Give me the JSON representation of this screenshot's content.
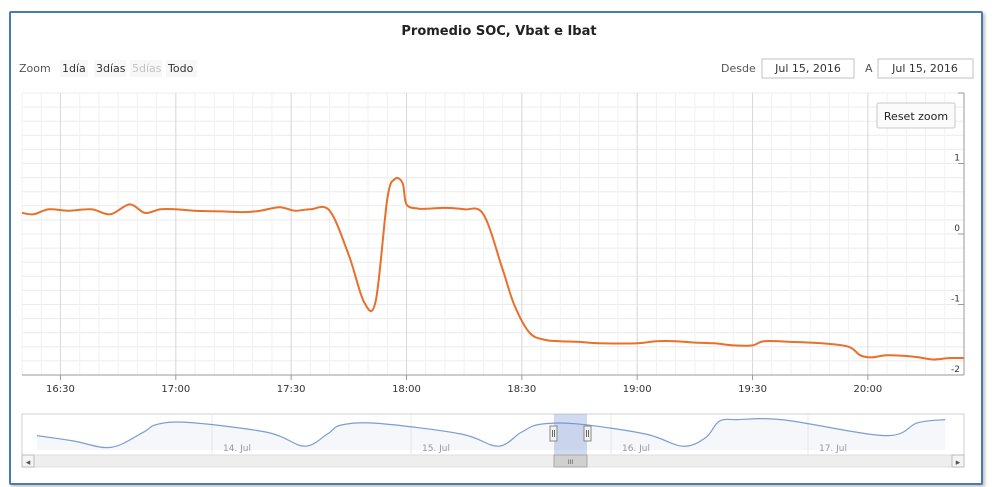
{
  "chart_data": {
    "type": "line",
    "title": "Promedio SOC, Vbat e Ibat",
    "xlabel": "",
    "ylabel": "",
    "x_ticks": [
      "16:30",
      "17:00",
      "17:30",
      "18:00",
      "18:30",
      "19:00",
      "19:30",
      "20:00"
    ],
    "y_ticks": [
      "1",
      "0",
      "-1",
      "-2"
    ],
    "x_range": [
      "16:20",
      "20:25"
    ],
    "ylim": [
      -2,
      2
    ],
    "grid": true,
    "series": [
      {
        "color": "#e8702a",
        "x": [
          "16:20",
          "16:23",
          "16:27",
          "16:32",
          "16:38",
          "16:43",
          "16:48",
          "16:52",
          "16:56",
          "17:00",
          "17:05",
          "17:12",
          "17:18",
          "17:22",
          "17:27",
          "17:31",
          "17:35",
          "17:40",
          "17:45",
          "17:49",
          "17:52",
          "17:55",
          "17:57",
          "17:59",
          "18:00",
          "18:03",
          "18:06",
          "18:10",
          "18:15",
          "18:20",
          "18:25",
          "18:28",
          "18:32",
          "18:36",
          "18:40",
          "18:45",
          "18:50",
          "19:00",
          "19:05",
          "19:10",
          "19:15",
          "19:20",
          "19:25",
          "19:30",
          "19:33",
          "19:40",
          "19:48",
          "19:55",
          "19:58",
          "20:01",
          "20:05",
          "20:12",
          "20:17",
          "20:21",
          "20:25"
        ],
        "y": [
          0.3,
          0.28,
          0.35,
          0.33,
          0.35,
          0.28,
          0.42,
          0.3,
          0.35,
          0.35,
          0.33,
          0.32,
          0.31,
          0.33,
          0.38,
          0.33,
          0.35,
          0.33,
          -0.3,
          -0.97,
          -0.95,
          0.5,
          0.78,
          0.72,
          0.42,
          0.36,
          0.36,
          0.37,
          0.35,
          0.28,
          -0.5,
          -1.0,
          -1.4,
          -1.5,
          -1.52,
          -1.53,
          -1.55,
          -1.55,
          -1.52,
          -1.52,
          -1.54,
          -1.55,
          -1.58,
          -1.58,
          -1.52,
          -1.53,
          -1.55,
          -1.6,
          -1.72,
          -1.75,
          -1.72,
          -1.74,
          -1.78,
          -1.76,
          -1.76
        ]
      }
    ],
    "navigator": {
      "x_labels": [
        "14. Jul",
        "15. Jul",
        "16. Jul",
        "17. Jul"
      ],
      "color": "#7b9ed0"
    }
  },
  "controls": {
    "zoom_label": "Zoom",
    "zoom_buttons": [
      "1día",
      "3días",
      "5días",
      "Todo"
    ],
    "from_label": "Desde",
    "from_value": "Jul 15, 2016",
    "to_label": "A",
    "to_value": "Jul 15, 2016",
    "reset_zoom": "Reset zoom"
  },
  "scrollbar": {
    "left_arrow": "◂",
    "right_arrow": "▸",
    "thumb_grip": "III"
  }
}
